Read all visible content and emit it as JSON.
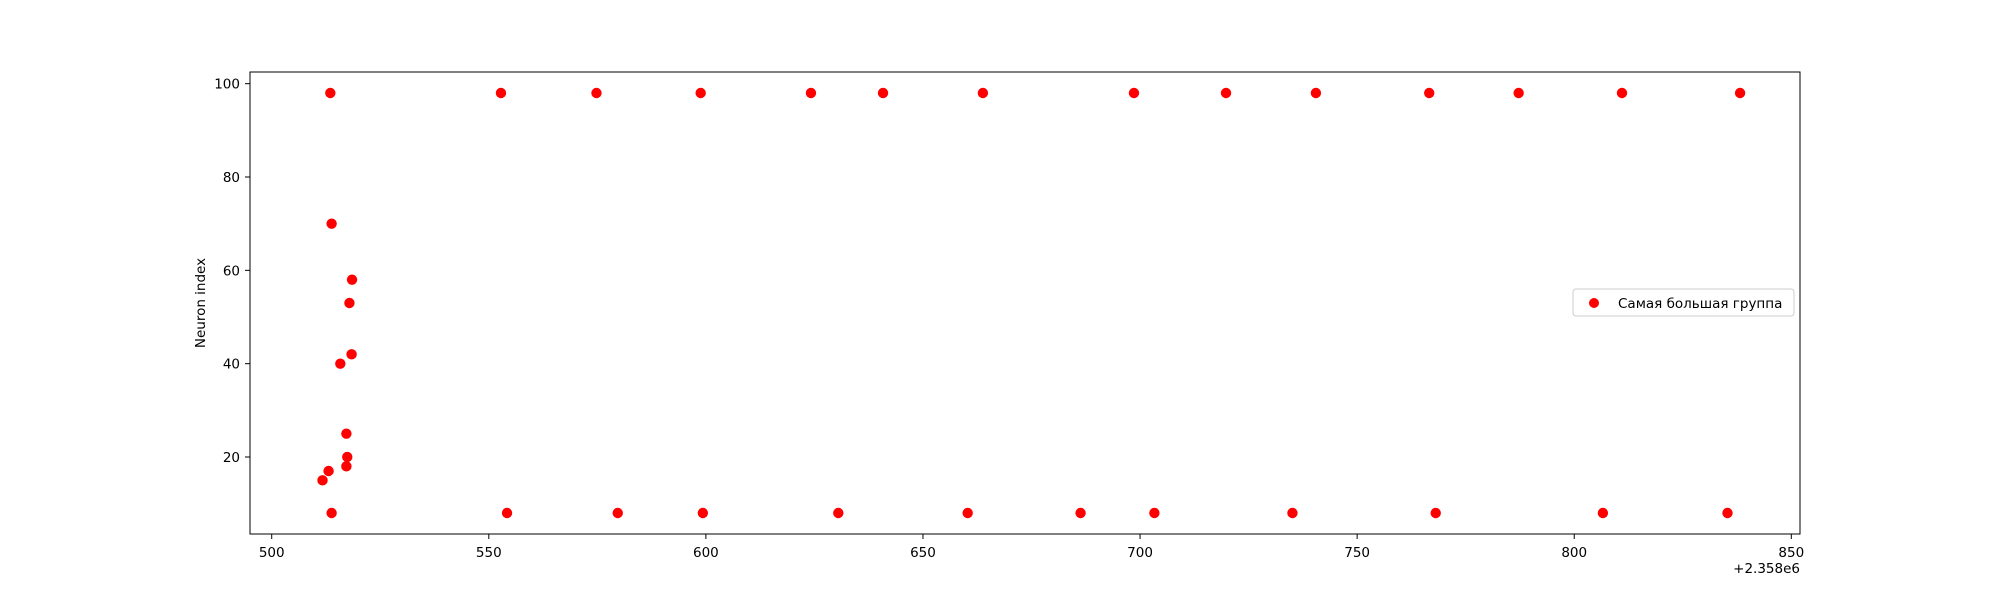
{
  "chart_data": {
    "type": "scatter",
    "title": "",
    "xlabel": "",
    "ylabel": "Neuron index",
    "x_offset_label": "+2.358e6",
    "xlim": [
      495,
      852
    ],
    "ylim": [
      3.5,
      102.5
    ],
    "xticks": [
      500,
      550,
      600,
      650,
      700,
      750,
      800,
      850
    ],
    "yticks": [
      20,
      40,
      60,
      80,
      100
    ],
    "grid": false,
    "legend_position": "center-right",
    "series": [
      {
        "name": "Самая большая группа",
        "color": "#ff0000",
        "points": [
          {
            "x": 513.5,
            "y": 98
          },
          {
            "x": 552.8,
            "y": 98
          },
          {
            "x": 574.8,
            "y": 98
          },
          {
            "x": 598.8,
            "y": 98
          },
          {
            "x": 624.2,
            "y": 98
          },
          {
            "x": 640.8,
            "y": 98
          },
          {
            "x": 663.8,
            "y": 98
          },
          {
            "x": 698.6,
            "y": 98
          },
          {
            "x": 719.8,
            "y": 98
          },
          {
            "x": 740.5,
            "y": 98
          },
          {
            "x": 766.6,
            "y": 98
          },
          {
            "x": 787.2,
            "y": 98
          },
          {
            "x": 811.0,
            "y": 98
          },
          {
            "x": 838.2,
            "y": 98
          },
          {
            "x": 513.8,
            "y": 70
          },
          {
            "x": 518.5,
            "y": 58
          },
          {
            "x": 517.9,
            "y": 53
          },
          {
            "x": 518.4,
            "y": 42
          },
          {
            "x": 515.8,
            "y": 40
          },
          {
            "x": 517.2,
            "y": 25
          },
          {
            "x": 517.4,
            "y": 20
          },
          {
            "x": 517.2,
            "y": 18
          },
          {
            "x": 513.1,
            "y": 17
          },
          {
            "x": 511.7,
            "y": 15
          },
          {
            "x": 513.8,
            "y": 8
          },
          {
            "x": 554.2,
            "y": 8
          },
          {
            "x": 579.7,
            "y": 8
          },
          {
            "x": 599.3,
            "y": 8
          },
          {
            "x": 630.5,
            "y": 8
          },
          {
            "x": 660.3,
            "y": 8
          },
          {
            "x": 686.3,
            "y": 8
          },
          {
            "x": 703.3,
            "y": 8
          },
          {
            "x": 735.1,
            "y": 8
          },
          {
            "x": 768.1,
            "y": 8
          },
          {
            "x": 806.6,
            "y": 8
          },
          {
            "x": 835.3,
            "y": 8
          }
        ]
      }
    ]
  }
}
